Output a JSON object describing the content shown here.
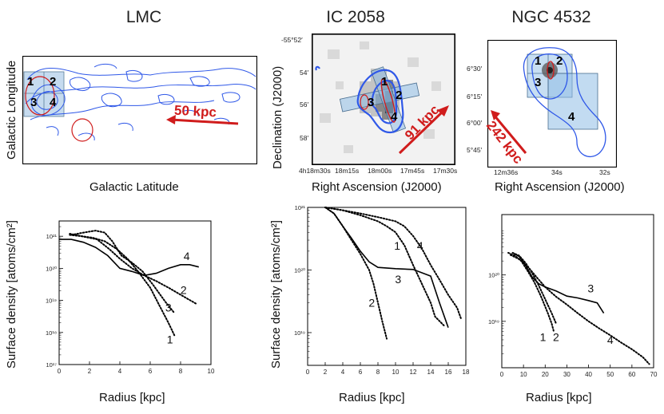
{
  "titles": {
    "lmc": "LMC",
    "ic2058": "IC 2058",
    "ngc4532": "NGC 4532"
  },
  "maps": {
    "lmc": {
      "xlabel": "Galactic Latitude",
      "ylabel": "Galactic Longitude",
      "scale": "50 kpc",
      "regions": [
        "1",
        "2",
        "3",
        "4"
      ]
    },
    "ic2058": {
      "xlabel": "Right Ascension (J2000)",
      "ylabel": "Declination (J2000)",
      "scale": "91 kpc",
      "regions": [
        "1",
        "2",
        "3",
        "4"
      ],
      "xticks": [
        "4h18m30s",
        "18m15s",
        "18m00s",
        "17m45s",
        "17m30s"
      ],
      "yticks": [
        "-55°52′",
        "54′",
        "56′",
        "58′"
      ]
    },
    "ngc4532": {
      "xlabel": "Right Ascension (J2000)",
      "scale": "242 kpc",
      "regions": [
        "1",
        "2",
        "3",
        "4"
      ],
      "xticks": [
        "12m36s",
        "34s",
        "32s"
      ],
      "yticks": [
        "6°30′",
        "6°15′",
        "6°00′",
        "5°45′"
      ]
    }
  },
  "profiles_ylabel": "Surface density [atoms/cm²]",
  "colors": {
    "contour": "#2f58e8",
    "arrow": "#d01c1c",
    "box": "#8fbde6",
    "line": "#000000"
  },
  "chart_data": [
    {
      "type": "line",
      "title": "LMC",
      "xlabel": "Radius [kpc]",
      "ylabel": "Surface density [atoms/cm²]",
      "xlim": [
        0,
        10
      ],
      "ylim": [
        1e+17,
        3e+21
      ],
      "yscale": "log",
      "xticks": [
        "0",
        "2",
        "4",
        "6",
        "8",
        "10"
      ],
      "yticks": [
        {
          "v": 1e+17,
          "label": "10¹⁷"
        },
        {
          "v": 1e+18,
          "label": "10¹⁸"
        },
        {
          "v": 1e+19,
          "label": "10¹⁹"
        },
        {
          "v": 1e+20,
          "label": "10²⁰"
        },
        {
          "v": 1e+21,
          "label": "10²¹"
        }
      ],
      "series": [
        {
          "name": "1",
          "style": "dotted",
          "x": [
            0.7,
            1.5,
            2.2,
            3.0,
            3.8,
            4.5,
            5.2,
            6.0,
            6.6,
            7.2,
            7.6
          ],
          "y": [
            1.2e+21,
            1e+21,
            9e+20,
            7e+20,
            4e+20,
            2e+20,
            8e+19,
            2.5e+19,
            7e+18,
            2e+18,
            8e+17
          ]
        },
        {
          "name": "2",
          "style": "dotted",
          "x": [
            0.7,
            1.5,
            2.5,
            3.3,
            4.0,
            4.8,
            5.6,
            6.4,
            7.2,
            8.0,
            9.0
          ],
          "y": [
            1.1e+21,
            1e+21,
            8e+20,
            4e+20,
            2e+20,
            1e+20,
            6e+19,
            4e+19,
            2.5e+19,
            1.5e+19,
            8e+18
          ]
        },
        {
          "name": "3",
          "style": "dotted",
          "x": [
            0.8,
            1.6,
            2.4,
            3.0,
            3.5,
            4.1,
            4.8,
            5.5,
            6.2,
            7.0,
            7.6
          ],
          "y": [
            1.1e+21,
            1.3e+21,
            1.5e+21,
            1.3e+21,
            7e+20,
            2.5e+20,
            1.5e+20,
            8e+19,
            3e+19,
            9e+18,
            4e+18
          ]
        },
        {
          "name": "4",
          "style": "solid",
          "x": [
            0,
            0.8,
            1.6,
            2.4,
            3.2,
            4.0,
            4.8,
            5.6,
            6.4,
            7.2,
            8.0,
            8.6,
            9.2
          ],
          "y": [
            8e+20,
            8e+20,
            6.5e+20,
            4.5e+20,
            2.5e+20,
            1e+20,
            8e+19,
            6e+19,
            7e+19,
            1e+20,
            1.3e+20,
            1.3e+20,
            1.1e+20
          ]
        }
      ],
      "labels": [
        {
          "text": "1",
          "x": 7.3,
          "y": 4.5e+17
        },
        {
          "text": "2",
          "x": 8.2,
          "y": 1.6e+19
        },
        {
          "text": "3",
          "x": 7.2,
          "y": 4.5e+18
        },
        {
          "text": "4",
          "x": 8.4,
          "y": 1.8e+20
        }
      ]
    },
    {
      "type": "line",
      "title": "IC 2058",
      "xlabel": "Radius [kpc]",
      "ylabel": "Surface density [atoms/cm²]",
      "xlim": [
        0,
        18
      ],
      "ylim": [
        3e+18,
        1e+21
      ],
      "yscale": "log",
      "xticks": [
        "0",
        "2",
        "4",
        "6",
        "8",
        "10",
        "12",
        "14",
        "16",
        "18"
      ],
      "yticks": [
        {
          "v": 1e+19,
          "label": "10¹⁹"
        },
        {
          "v": 1e+20,
          "label": "10²⁰"
        },
        {
          "v": 1e+21,
          "label": "10²¹"
        }
      ],
      "series": [
        {
          "name": "1",
          "style": "dotted",
          "x": [
            2,
            4,
            6,
            8,
            9,
            10,
            11,
            12,
            13,
            14,
            14.5,
            15.5
          ],
          "y": [
            1e+21,
            9e+20,
            7.5e+20,
            6e+20,
            5e+20,
            4e+20,
            2.5e+20,
            1.2e+20,
            6e+19,
            3e+19,
            1.8e+19,
            1.3e+19
          ]
        },
        {
          "name": "2",
          "style": "dotted",
          "x": [
            2,
            3,
            4,
            5,
            6,
            7,
            7.5,
            8,
            8.5,
            9
          ],
          "y": [
            1e+21,
            8e+20,
            5e+20,
            3e+20,
            1.8e+20,
            1e+20,
            6e+19,
            3e+19,
            1.5e+19,
            8e+18
          ]
        },
        {
          "name": "3",
          "style": "solid",
          "x": [
            2,
            3,
            4,
            5,
            6,
            7,
            8,
            10,
            12,
            14,
            15,
            16
          ],
          "y": [
            1e+21,
            8e+20,
            5e+20,
            3.2e+20,
            2e+20,
            1.35e+20,
            1.1e+20,
            1.05e+20,
            1.02e+20,
            8e+19,
            3e+19,
            1.2e+19
          ]
        },
        {
          "name": "4",
          "style": "dotted",
          "x": [
            2,
            4,
            6,
            8,
            10,
            11,
            12,
            13,
            14,
            15,
            16,
            17,
            17.5
          ],
          "y": [
            1e+21,
            9e+20,
            8e+20,
            7e+20,
            6e+20,
            5e+20,
            3.5e+20,
            2.2e+20,
            1.2e+20,
            7e+19,
            4e+19,
            2.5e+19,
            1.6e+19
          ]
        }
      ],
      "labels": [
        {
          "text": "1",
          "x": 10.2,
          "y": 2.1e+20
        },
        {
          "text": "2",
          "x": 7.3,
          "y": 2.6e+19
        },
        {
          "text": "3",
          "x": 10.3,
          "y": 6.2e+19
        },
        {
          "text": "4",
          "x": 12.8,
          "y": 2.1e+20
        }
      ]
    },
    {
      "type": "line",
      "title": "NGC 4532",
      "xlabel": "Radius [kpc]",
      "ylabel": "Surface density [atoms/cm²]",
      "xlim": [
        0,
        70
      ],
      "ylim": [
        1e+18,
        2e+21
      ],
      "yscale": "log",
      "xticks": [
        "0",
        "10",
        "20",
        "30",
        "40",
        "50",
        "60",
        "70"
      ],
      "yticks": [
        {
          "v": 1e+19,
          "label": "10¹⁹"
        },
        {
          "v": 1e+20,
          "label": "10²⁰"
        }
      ],
      "series": [
        {
          "name": "1",
          "style": "dotted",
          "x": [
            3,
            6,
            9,
            12,
            15,
            18,
            21,
            23,
            24
          ],
          "y": [
            3e+20,
            2.6e+20,
            2e+20,
            1.2e+20,
            7e+19,
            3.5e+19,
            1.6e+19,
            9e+18,
            6e+18
          ]
        },
        {
          "name": "2",
          "style": "dotted",
          "x": [
            5,
            8,
            11,
            14,
            17,
            20,
            23,
            25
          ],
          "y": [
            3e+20,
            2.6e+20,
            1.8e+20,
            1.1e+20,
            6e+19,
            3e+19,
            1.5e+19,
            9e+18
          ]
        },
        {
          "name": "3",
          "style": "solid",
          "x": [
            5,
            8,
            11,
            14,
            17,
            20,
            25,
            30,
            35,
            40,
            44,
            47
          ],
          "y": [
            3e+20,
            2.5e+20,
            1.6e+20,
            9e+19,
            6.5e+19,
            5.5e+19,
            4.5e+19,
            3.5e+19,
            3.2e+19,
            2.8e+19,
            2.5e+19,
            1.5e+19
          ]
        },
        {
          "name": "4",
          "style": "dotted",
          "x": [
            4,
            8,
            12,
            16,
            20,
            25,
            30,
            35,
            40,
            45,
            50,
            55,
            60,
            65,
            68
          ],
          "y": [
            2.7e+20,
            2.2e+20,
            1.5e+20,
            9e+19,
            5.5e+19,
            3.4e+19,
            2.3e+19,
            1.5e+19,
            1e+19,
            7e+18,
            5e+18,
            3.5e+18,
            2.5e+18,
            1.7e+18,
            1.2e+18
          ]
        }
      ],
      "labels": [
        {
          "text": "1",
          "x": 19,
          "y": 3.8e+18
        },
        {
          "text": "2",
          "x": 25,
          "y": 3.8e+18
        },
        {
          "text": "3",
          "x": 41,
          "y": 4.2e+19
        },
        {
          "text": "4",
          "x": 50,
          "y": 3.3e+18
        }
      ]
    }
  ]
}
